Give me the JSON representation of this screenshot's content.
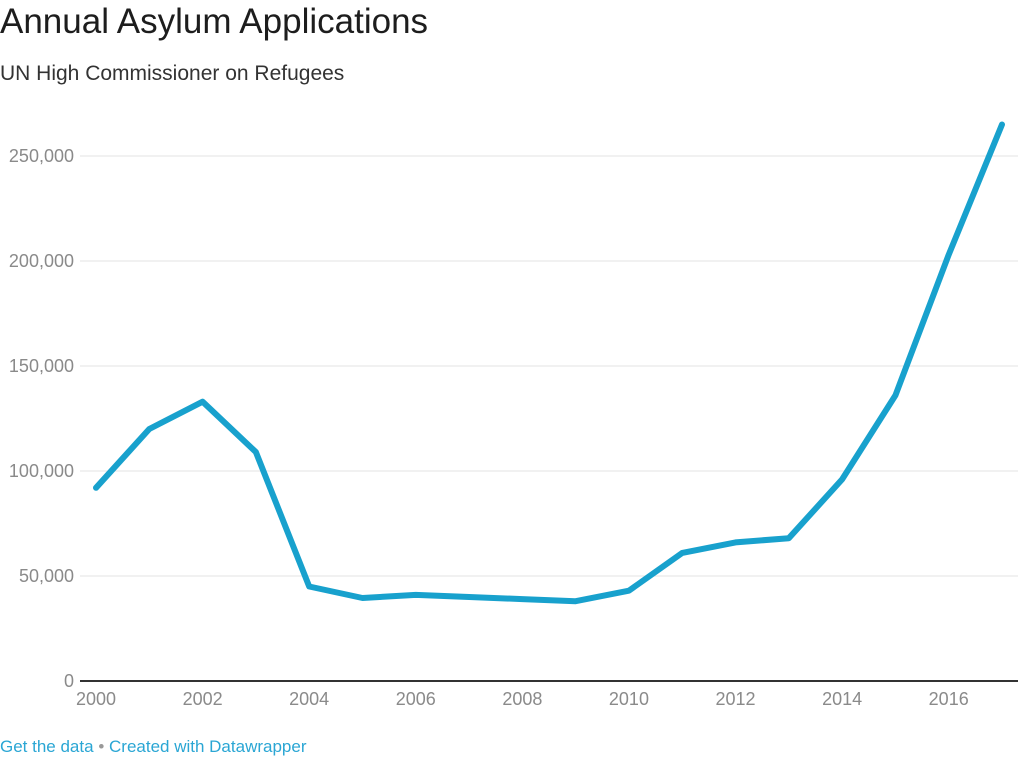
{
  "chart_data": {
    "type": "line",
    "title": "Annual Asylum Applications",
    "subtitle": "UN High Commissioner on Refugees",
    "x": [
      2000,
      2001,
      2002,
      2003,
      2004,
      2005,
      2006,
      2007,
      2008,
      2009,
      2010,
      2011,
      2012,
      2013,
      2014,
      2015,
      2016,
      2017
    ],
    "values": [
      92000,
      120000,
      133000,
      109000,
      45000,
      39500,
      41000,
      40000,
      39000,
      38000,
      43000,
      61000,
      66000,
      68000,
      96000,
      136000,
      203000,
      265000
    ],
    "xlim": [
      2000,
      2017
    ],
    "ylim": [
      0,
      265000
    ],
    "xticks": [
      "2000",
      "2002",
      "2004",
      "2006",
      "2008",
      "2010",
      "2012",
      "2014",
      "2016"
    ],
    "yticks": [
      {
        "value": 0,
        "label": "0"
      },
      {
        "value": 50000,
        "label": "50,000"
      },
      {
        "value": 100000,
        "label": "100,000"
      },
      {
        "value": 150000,
        "label": "150,000"
      },
      {
        "value": 200000,
        "label": "200,000"
      },
      {
        "value": 250000,
        "label": "250,000"
      }
    ],
    "grid": true,
    "line_color": "#18a1cd"
  },
  "footer": {
    "get_data": "Get the data",
    "separator": "•",
    "created_with": "Created with Datawrapper"
  }
}
